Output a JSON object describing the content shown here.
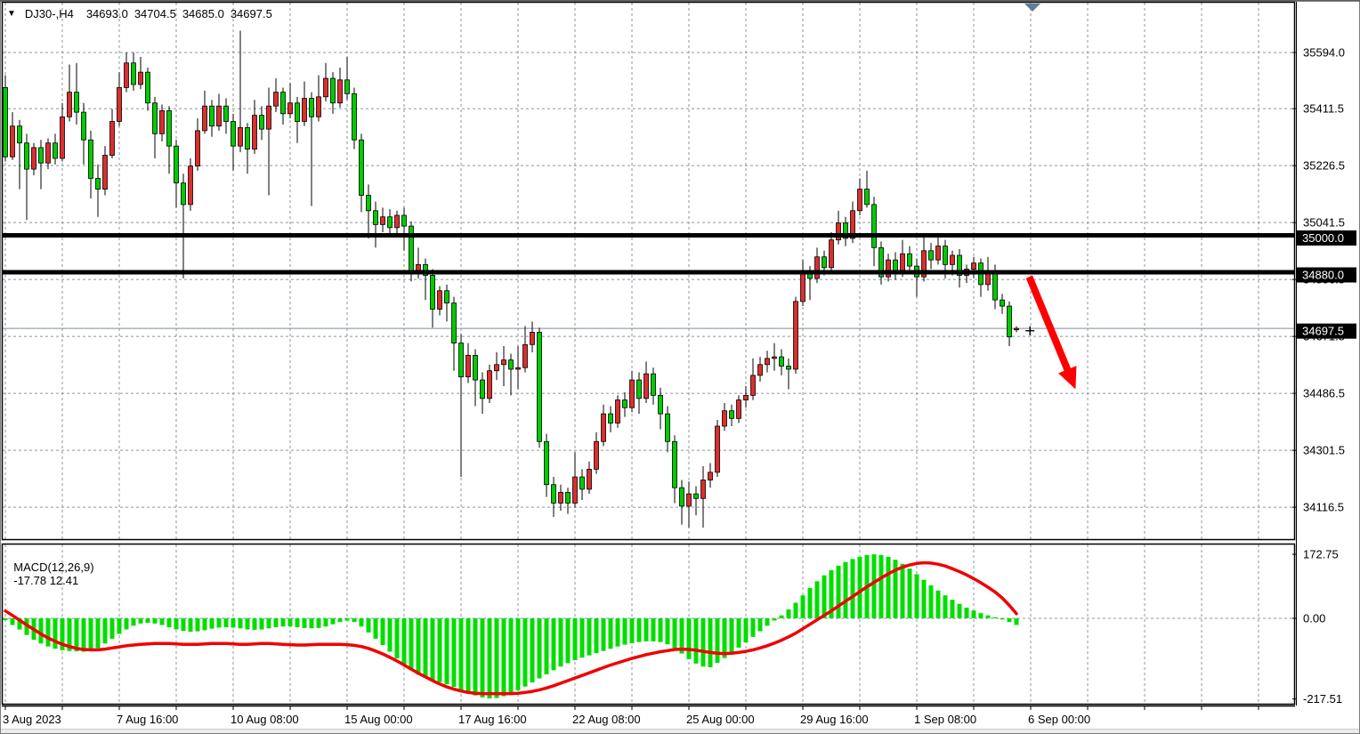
{
  "window": {
    "title": {
      "symbol_timeframe": "DJ30-,H4",
      "open": "34693.0",
      "high": "34704.5",
      "low": "34685.0",
      "close": "34697.5"
    }
  },
  "colors": {
    "background": "#ffffff",
    "text": "#000000",
    "grid": "#8b95a5",
    "frame": "#000000",
    "bull_candle": "#dd2e2e",
    "bear_candle": "#00cc00",
    "candle_border": "#000000",
    "macd_histogram": "#00dd00",
    "macd_signal": "#f00000",
    "level_line": "#000000",
    "current_price_line": "#808f9b",
    "arrow": "#ff0000",
    "axis_badge_bg": "#000000",
    "axis_badge_text": "#ffffff",
    "scroll_marker": "#5f7d95",
    "bottom_strip": "#ececec"
  },
  "price_axis": {
    "ticks": [
      35594.0,
      35411.5,
      35226.5,
      35041.5,
      34856.5,
      34671.5,
      34486.5,
      34301.5,
      34116.5
    ],
    "badges": [
      {
        "label": "35000.0",
        "price": 35000.0
      },
      {
        "label": "34880.0",
        "price": 34880.0
      },
      {
        "label": "34697.5",
        "price": 34697.5
      }
    ]
  },
  "indicator_axis": {
    "ticks": [
      {
        "label": "172.75",
        "value": 172.75
      },
      {
        "label": "0.00",
        "value": 0
      },
      {
        "label": "-217.51",
        "value": -217.51
      }
    ]
  },
  "time_axis": {
    "labels": [
      {
        "text": "3 Aug 2023",
        "bar": 0
      },
      {
        "text": "7 Aug 16:00",
        "bar": 16
      },
      {
        "text": "10 Aug 08:00",
        "bar": 32
      },
      {
        "text": "15 Aug 00:00",
        "bar": 48
      },
      {
        "text": "17 Aug 16:00",
        "bar": 64
      },
      {
        "text": "22 Aug 08:00",
        "bar": 80
      },
      {
        "text": "25 Aug 00:00",
        "bar": 96
      },
      {
        "text": "29 Aug 16:00",
        "bar": 112
      },
      {
        "text": "1 Sep 08:00",
        "bar": 128
      },
      {
        "text": "6 Sep 00:00",
        "bar": 144
      }
    ]
  },
  "chart_data": [
    {
      "type": "candlestick",
      "title": "DJ30-,H4",
      "symbol": "DJ30-",
      "timeframe": "H4",
      "last_ohlc": {
        "open": 34693.0,
        "high": 34704.5,
        "low": 34685.0,
        "close": 34697.5
      },
      "ylim": [
        34030,
        35680
      ],
      "y_ticks": [
        35594.0,
        35411.5,
        35226.5,
        35041.5,
        34856.5,
        34671.5,
        34486.5,
        34301.5,
        34116.5
      ],
      "grid": "dashed",
      "bars_per_gridline": 8,
      "levels": [
        35000.0,
        34880.0
      ],
      "current_price": 34697.5,
      "annotations": [
        {
          "type": "arrow",
          "from": {
            "bar": 143.8,
            "price": 34865
          },
          "to": {
            "bar": 150.3,
            "price": 34500
          }
        },
        {
          "type": "cross",
          "bar": 143.9,
          "price": 34690
        }
      ],
      "candles": [
        [
          35480,
          35520,
          35240,
          35255
        ],
        [
          35255,
          35400,
          35245,
          35355
        ],
        [
          35355,
          35375,
          35150,
          35300
        ],
        [
          35300,
          35330,
          35050,
          35215
        ],
        [
          35215,
          35300,
          35195,
          35285
        ],
        [
          35285,
          35310,
          35150,
          35235
        ],
        [
          35235,
          35315,
          35215,
          35300
        ],
        [
          35300,
          35330,
          35230,
          35250
        ],
        [
          35250,
          35430,
          35240,
          35385
        ],
        [
          35385,
          35555,
          35370,
          35465
        ],
        [
          35465,
          35560,
          35360,
          35400
        ],
        [
          35400,
          35430,
          35230,
          35310
        ],
        [
          35310,
          35340,
          35120,
          35185
        ],
        [
          35185,
          35230,
          35060,
          35150
        ],
        [
          35150,
          35290,
          35130,
          35260
        ],
        [
          35260,
          35410,
          35250,
          35370
        ],
        [
          35370,
          35530,
          35355,
          35480
        ],
        [
          35480,
          35594,
          35465,
          35560
        ],
        [
          35560,
          35594,
          35470,
          35490
        ],
        [
          35490,
          35580,
          35475,
          35530
        ],
        [
          35530,
          35545,
          35405,
          35430
        ],
        [
          35430,
          35450,
          35250,
          35330
        ],
        [
          35330,
          35425,
          35305,
          35405
        ],
        [
          35405,
          35420,
          35200,
          35290
        ],
        [
          35290,
          35310,
          35090,
          35170
        ],
        [
          35170,
          35200,
          34860,
          35100
        ],
        [
          35100,
          35250,
          35080,
          35225
        ],
        [
          35225,
          35380,
          35210,
          35340
        ],
        [
          35340,
          35470,
          35330,
          35420
        ],
        [
          35420,
          35440,
          35320,
          35355
        ],
        [
          35355,
          35460,
          35340,
          35420
        ],
        [
          35420,
          35445,
          35330,
          35370
        ],
        [
          35370,
          35395,
          35210,
          35290
        ],
        [
          35290,
          35665,
          35270,
          35350
        ],
        [
          35350,
          35365,
          35200,
          35280
        ],
        [
          35280,
          35440,
          35265,
          35390
        ],
        [
          35390,
          35420,
          35310,
          35345
        ],
        [
          35345,
          35480,
          35130,
          35420
        ],
        [
          35420,
          35510,
          35400,
          35465
        ],
        [
          35465,
          35480,
          35360,
          35395
        ],
        [
          35395,
          35495,
          35380,
          35430
        ],
        [
          35430,
          35450,
          35300,
          35370
        ],
        [
          35370,
          35500,
          35355,
          35445
        ],
        [
          35445,
          35465,
          35095,
          35385
        ],
        [
          35385,
          35520,
          35370,
          35450
        ],
        [
          35450,
          35560,
          35435,
          35510
        ],
        [
          35510,
          35530,
          35395,
          35430
        ],
        [
          35430,
          35545,
          35415,
          35505
        ],
        [
          35505,
          35580,
          35440,
          35460
        ],
        [
          35460,
          35480,
          35280,
          35310
        ],
        [
          35310,
          35330,
          35075,
          35130
        ],
        [
          35130,
          35165,
          34990,
          35080
        ],
        [
          35080,
          35110,
          34960,
          35035
        ],
        [
          35035,
          35090,
          35010,
          35060
        ],
        [
          35060,
          35085,
          34995,
          35025
        ],
        [
          35025,
          35080,
          35005,
          35065
        ],
        [
          35065,
          35090,
          34950,
          35030
        ],
        [
          35030,
          35045,
          34850,
          34880
        ],
        [
          34880,
          34960,
          34860,
          34905
        ],
        [
          34905,
          34925,
          34790,
          34870
        ],
        [
          34870,
          34890,
          34700,
          34760
        ],
        [
          34760,
          34835,
          34740,
          34820
        ],
        [
          34820,
          34840,
          34720,
          34780
        ],
        [
          34780,
          34800,
          34560,
          34650
        ],
        [
          34650,
          34680,
          34215,
          34540
        ],
        [
          34540,
          34650,
          34520,
          34610
        ],
        [
          34610,
          34630,
          34445,
          34530
        ],
        [
          34530,
          34555,
          34420,
          34470
        ],
        [
          34470,
          34580,
          34455,
          34560
        ],
        [
          34560,
          34620,
          34530,
          34580
        ],
        [
          34580,
          34640,
          34510,
          34595
        ],
        [
          34595,
          34615,
          34480,
          34565
        ],
        [
          34565,
          34640,
          34500,
          34570
        ],
        [
          34570,
          34705,
          34555,
          34645
        ],
        [
          34645,
          34720,
          34620,
          34685
        ],
        [
          34685,
          34700,
          34310,
          34330
        ],
        [
          34330,
          34355,
          34150,
          34190
        ],
        [
          34190,
          34215,
          34085,
          34130
        ],
        [
          34130,
          34190,
          34105,
          34165
        ],
        [
          34165,
          34180,
          34095,
          34130
        ],
        [
          34130,
          34295,
          34115,
          34215
        ],
        [
          34215,
          34240,
          34140,
          34175
        ],
        [
          34175,
          34265,
          34160,
          34240
        ],
        [
          34240,
          34360,
          34225,
          34330
        ],
        [
          34330,
          34450,
          34315,
          34420
        ],
        [
          34420,
          34445,
          34360,
          34390
        ],
        [
          34390,
          34480,
          34375,
          34465
        ],
        [
          34465,
          34490,
          34410,
          34440
        ],
        [
          34440,
          34560,
          34425,
          34530
        ],
        [
          34530,
          34555,
          34420,
          34470
        ],
        [
          34470,
          34590,
          34455,
          34550
        ],
        [
          34550,
          34570,
          34450,
          34480
        ],
        [
          34480,
          34505,
          34370,
          34420
        ],
        [
          34420,
          34445,
          34295,
          34330
        ],
        [
          34330,
          34350,
          34130,
          34180
        ],
        [
          34180,
          34205,
          34060,
          34120
        ],
        [
          34120,
          34200,
          34050,
          34160
        ],
        [
          34160,
          34185,
          34090,
          34145
        ],
        [
          34145,
          34250,
          34050,
          34205
        ],
        [
          34205,
          34260,
          34180,
          34230
        ],
        [
          34230,
          34400,
          34215,
          34380
        ],
        [
          34380,
          34455,
          34365,
          34430
        ],
        [
          34430,
          34450,
          34380,
          34405
        ],
        [
          34405,
          34480,
          34390,
          34465
        ],
        [
          34465,
          34510,
          34440,
          34480
        ],
        [
          34480,
          34600,
          34465,
          34545
        ],
        [
          34545,
          34605,
          34525,
          34580
        ],
        [
          34580,
          34625,
          34555,
          34600
        ],
        [
          34600,
          34650,
          34560,
          34605
        ],
        [
          34605,
          34630,
          34545,
          34575
        ],
        [
          34575,
          34600,
          34500,
          34565
        ],
        [
          34565,
          34800,
          34550,
          34785
        ],
        [
          34785,
          34920,
          34770,
          34880
        ],
        [
          34880,
          34900,
          34790,
          34860
        ],
        [
          34860,
          34960,
          34845,
          34930
        ],
        [
          34930,
          34950,
          34870,
          34895
        ],
        [
          34895,
          35010,
          34880,
          34985
        ],
        [
          34985,
          35080,
          34970,
          35040
        ],
        [
          35040,
          35060,
          34965,
          34990
        ],
        [
          34990,
          35110,
          34975,
          35080
        ],
        [
          35080,
          35185,
          35065,
          35150
        ],
        [
          35150,
          35210,
          35090,
          35100
        ],
        [
          35100,
          35125,
          34900,
          34960
        ],
        [
          34960,
          34980,
          34840,
          34865
        ],
        [
          34865,
          34940,
          34850,
          34920
        ],
        [
          34920,
          34945,
          34855,
          34880
        ],
        [
          34880,
          34985,
          34865,
          34940
        ],
        [
          34940,
          34965,
          34875,
          34900
        ],
        [
          34900,
          34925,
          34800,
          34865
        ],
        [
          34865,
          34995,
          34850,
          34950
        ],
        [
          34950,
          34975,
          34890,
          34920
        ],
        [
          34920,
          35000,
          34905,
          34965
        ],
        [
          34965,
          34985,
          34860,
          34905
        ],
        [
          34905,
          34950,
          34870,
          34935
        ],
        [
          34935,
          34955,
          34830,
          34870
        ],
        [
          34870,
          34905,
          34845,
          34890
        ],
        [
          34890,
          34930,
          34860,
          34910
        ],
        [
          34910,
          34925,
          34800,
          34840
        ],
        [
          34840,
          34930,
          34820,
          34885
        ],
        [
          34885,
          34905,
          34760,
          34790
        ],
        [
          34790,
          34810,
          34745,
          34770
        ],
        [
          34770,
          34785,
          34640,
          34670
        ],
        [
          34693,
          34704.5,
          34685,
          34697.5
        ]
      ]
    },
    {
      "type": "bar",
      "subtype": "macd",
      "label": "MACD(12,26,9)",
      "params": [
        12,
        26,
        9
      ],
      "current_macd": -17.78,
      "current_signal": 12.41,
      "current_text": "-17.78 12.41",
      "ylim": [
        -230,
        190
      ],
      "y_ticks": [
        172.75,
        0,
        -217.51
      ],
      "histogram": [
        -5,
        -18,
        -30,
        -45,
        -58,
        -68,
        -76,
        -82,
        -86,
        -88,
        -89,
        -90,
        -88,
        -80,
        -68,
        -55,
        -42,
        -30,
        -20,
        -14,
        -12,
        -14,
        -18,
        -24,
        -30,
        -34,
        -36,
        -35,
        -32,
        -28,
        -25,
        -24,
        -25,
        -27,
        -30,
        -31,
        -30,
        -27,
        -24,
        -22,
        -22,
        -24,
        -26,
        -27,
        -26,
        -22,
        -16,
        -10,
        -6,
        -10,
        -22,
        -38,
        -55,
        -72,
        -90,
        -108,
        -125,
        -140,
        -152,
        -160,
        -166,
        -172,
        -178,
        -185,
        -193,
        -201,
        -208,
        -213,
        -216,
        -215,
        -210,
        -203,
        -194,
        -184,
        -173,
        -162,
        -151,
        -140,
        -130,
        -121,
        -113,
        -106,
        -100,
        -94,
        -88,
        -82,
        -76,
        -71,
        -67,
        -64,
        -62,
        -62,
        -64,
        -70,
        -80,
        -95,
        -110,
        -122,
        -130,
        -132,
        -120,
        -107,
        -93,
        -79,
        -65,
        -50,
        -35,
        -20,
        -6,
        8,
        24,
        42,
        62,
        82,
        100,
        116,
        130,
        142,
        152,
        160,
        166,
        171,
        172.75,
        171,
        166,
        158,
        147,
        134,
        119,
        104,
        89,
        75,
        62,
        50,
        39,
        29,
        21,
        14,
        8,
        3,
        -3,
        -10,
        -17.78
      ],
      "signal": [
        20,
        8,
        -5,
        -18,
        -30,
        -42,
        -53,
        -62,
        -70,
        -76,
        -81,
        -84,
        -85,
        -85,
        -83,
        -80,
        -77,
        -74,
        -72,
        -70,
        -69,
        -68,
        -68,
        -68,
        -69,
        -70,
        -70,
        -70,
        -69,
        -68,
        -68,
        -68,
        -69,
        -70,
        -70,
        -69,
        -68,
        -68,
        -69,
        -70,
        -71,
        -72,
        -72,
        -71,
        -70,
        -70,
        -70,
        -70,
        -71,
        -73,
        -76,
        -81,
        -88,
        -96,
        -105,
        -115,
        -126,
        -137,
        -148,
        -158,
        -168,
        -177,
        -185,
        -191,
        -196,
        -200,
        -202,
        -203,
        -203,
        -203,
        -203,
        -203,
        -202,
        -200,
        -197,
        -193,
        -188,
        -182,
        -175,
        -168,
        -161,
        -154,
        -147,
        -140,
        -133,
        -126,
        -120,
        -114,
        -108,
        -103,
        -98,
        -94,
        -90,
        -87,
        -84,
        -83,
        -84,
        -86,
        -89,
        -92,
        -94,
        -95,
        -94,
        -92,
        -89,
        -85,
        -80,
        -74,
        -67,
        -59,
        -50,
        -40,
        -28,
        -16,
        -4,
        8,
        20,
        33,
        46,
        59,
        72,
        85,
        97,
        109,
        120,
        130,
        138,
        144,
        148,
        150,
        149,
        146,
        141,
        134,
        126,
        117,
        107,
        96,
        84,
        71,
        55,
        35,
        12.41
      ]
    }
  ]
}
